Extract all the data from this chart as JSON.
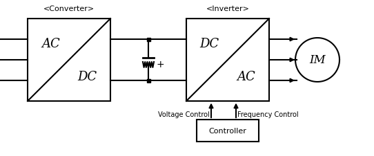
{
  "bg_color": "#ffffff",
  "line_color": "#000000",
  "box_color": "#ffffff",
  "figsize": [
    5.42,
    2.28
  ],
  "dpi": 100,
  "converter_label": "<Converter>",
  "inverter_label": "<Inverter>",
  "im_label": "IM",
  "controller_label": "Controller",
  "voltage_label": "Voltage Control",
  "frequency_label": "Frequency Control",
  "conv_ac": "AC",
  "conv_dc": "DC",
  "inv_dc": "DC",
  "inv_ac": "AC"
}
